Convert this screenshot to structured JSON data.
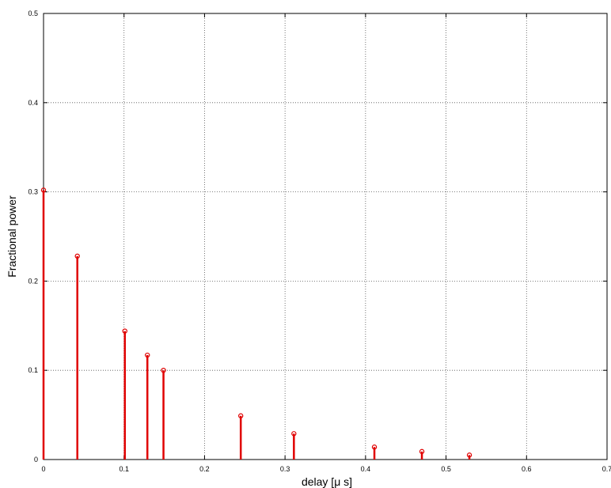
{
  "chart_data": {
    "type": "stem",
    "title": "",
    "xlabel": "delay [μ s]",
    "ylabel": "Fractional power",
    "xlim": [
      0,
      0.7
    ],
    "ylim": [
      0,
      0.5
    ],
    "grid": true,
    "x_ticks": [
      0,
      0.1,
      0.2,
      0.3,
      0.4,
      0.5,
      0.6,
      0.7
    ],
    "x_tick_labels": [
      "0",
      "0.1",
      "0.2",
      "0.3",
      "0.4",
      "0.5",
      "0.6",
      "0.7"
    ],
    "y_ticks": [
      0,
      0.1,
      0.2,
      0.3,
      0.4,
      0.5
    ],
    "y_tick_labels": [
      "0",
      "0.1",
      "0.2",
      "0.3",
      "0.4",
      "0.5"
    ],
    "color": "#e00000",
    "x": [
      0,
      0.042,
      0.101,
      0.129,
      0.149,
      0.245,
      0.311,
      0.411,
      0.47,
      0.529
    ],
    "y": [
      0.302,
      0.228,
      0.144,
      0.117,
      0.1,
      0.049,
      0.029,
      0.014,
      0.009,
      0.005
    ]
  }
}
